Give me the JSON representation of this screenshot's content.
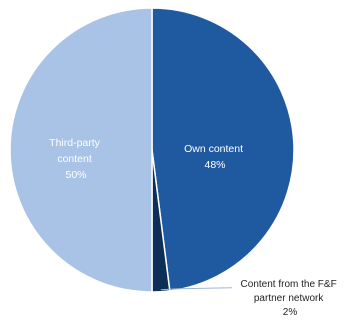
{
  "chart_data": {
    "type": "pie",
    "title": "",
    "start": "top",
    "direction": "clockwise",
    "colors": {
      "own": "#1f5aa0",
      "partner": "#0d2e57",
      "third": "#a8c3e5",
      "separator": "#ffffff",
      "inside_label_own": "#ffffff",
      "inside_label_third": "#ffffff",
      "leader_line": "#9fb7d3"
    },
    "slices": [
      {
        "key": "own",
        "label": "Own content",
        "value": 48,
        "value_text": "48%"
      },
      {
        "key": "partner",
        "label": "Content from the F&F partner network",
        "label_lines": [
          "Content from the F&F",
          "partner network"
        ],
        "value": 2,
        "value_text": "2%"
      },
      {
        "key": "third",
        "label": "Third-party content",
        "label_lines": [
          "Third-party",
          "content"
        ],
        "value": 50,
        "value_text": "50%"
      }
    ]
  }
}
